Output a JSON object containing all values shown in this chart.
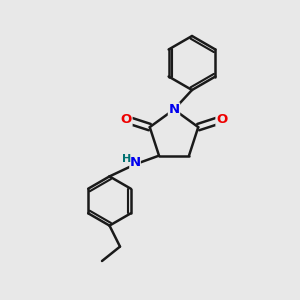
{
  "background_color": "#e8e8e8",
  "bond_color": "#1a1a1a",
  "oxygen_color": "#ee0000",
  "nitrogen_color": "#0000ee",
  "hydrogen_color": "#007070",
  "line_width": 1.8,
  "figsize": [
    3.0,
    3.0
  ],
  "dpi": 100,
  "xlim": [
    0.0,
    1.0
  ],
  "ylim": [
    0.0,
    1.0
  ]
}
